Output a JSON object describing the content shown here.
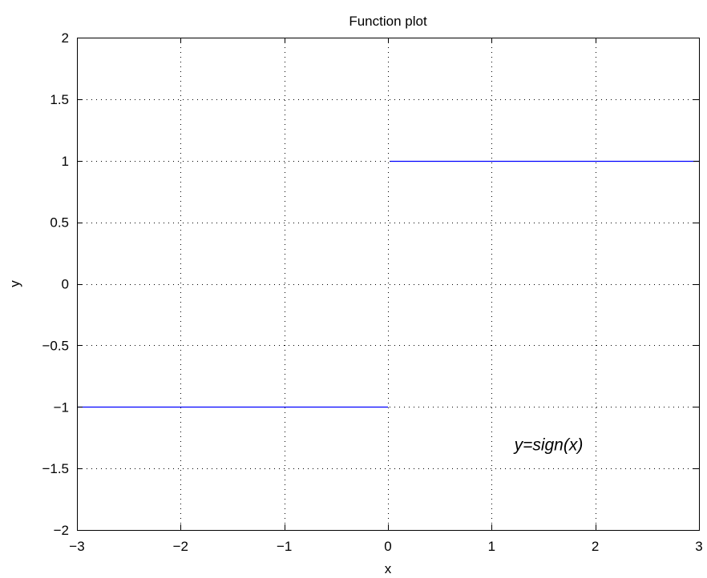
{
  "chart_data": {
    "type": "line",
    "title": "Function plot",
    "xlabel": "x",
    "ylabel": "y",
    "xlim": [
      -3,
      3
    ],
    "ylim": [
      -2,
      2
    ],
    "xticks": [
      -3,
      -2,
      -1,
      0,
      1,
      2,
      3
    ],
    "xtick_labels": [
      "−3",
      "−2",
      "−1",
      "0",
      "1",
      "2",
      "3"
    ],
    "yticks": [
      -2,
      -1.5,
      -1,
      -0.5,
      0,
      0.5,
      1,
      1.5,
      2
    ],
    "ytick_labels": [
      "−2",
      "−1.5",
      "−1",
      "−0.5",
      "0",
      "0.5",
      "1",
      "1.5",
      "2"
    ],
    "grid": true,
    "grid_style": "dotted",
    "series": [
      {
        "color": "#0000ff",
        "segments": [
          [
            [
              -3,
              -1
            ],
            [
              0,
              -1
            ]
          ],
          [
            [
              0.02,
              1
            ],
            [
              3,
              1
            ]
          ]
        ]
      }
    ],
    "annotations": [
      {
        "text": "y=sign(x)",
        "x": 1.55,
        "y": -1.3,
        "italic": true
      }
    ]
  }
}
